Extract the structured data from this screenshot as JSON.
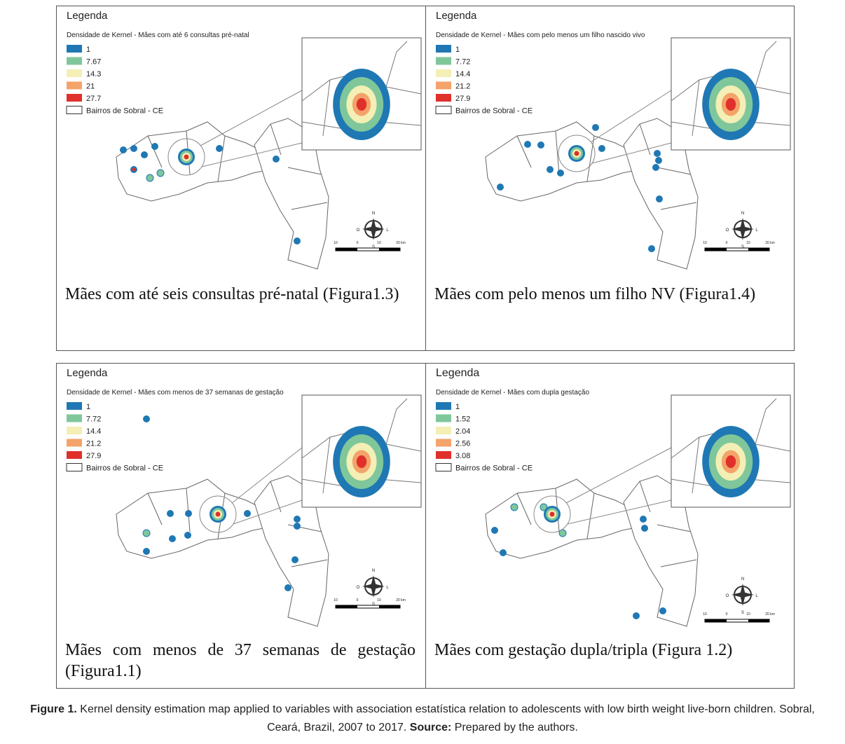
{
  "panels": [
    {
      "legend_heading": "Legenda",
      "legend_title": "Densidade de Kernel - Mães com até 6 consultas pré-natal",
      "legend_items": [
        "1",
        "7.67",
        "14.3",
        "21",
        "27.7"
      ],
      "boundary_label": "Bairros de Sobral - CE",
      "compass": [
        "N",
        "O",
        "L",
        "S"
      ],
      "scale_labels": [
        "10",
        "0",
        "10",
        "20 km"
      ],
      "caption": "Mães com até seis consultas pré-natal (Figura1.3)"
    },
    {
      "legend_heading": "Legenda",
      "legend_title": "Densidade de Kernel - Mães com pelo menos um filho nascido vivo",
      "legend_items": [
        "1",
        "7.72",
        "14.4",
        "21.2",
        "27.9"
      ],
      "boundary_label": "Bairros de Sobral - CE",
      "compass": [
        "N",
        "O",
        "L",
        "S"
      ],
      "scale_labels": [
        "10",
        "0",
        "10",
        "20 km"
      ],
      "caption": "Mães com pelo menos um filho NV (Figura1.4)"
    },
    {
      "legend_heading": "Legenda",
      "legend_title": "Densidade de Kernel - Mães com menos de 37 semanas de gestação",
      "legend_items": [
        "1",
        "7.72",
        "14.4",
        "21.2",
        "27.9"
      ],
      "boundary_label": "Bairros de Sobral - CE",
      "compass": [
        "N",
        "O",
        "L",
        "S"
      ],
      "scale_labels": [
        "10",
        "0",
        "10",
        "20 km"
      ],
      "caption": "Mães com menos de 37 semanas de gestação (Figura1.1)"
    },
    {
      "legend_heading": "Legenda",
      "legend_title": "Densidade de Kernel - Mães com dupla gestação",
      "legend_items": [
        "1",
        "1.52",
        "2.04",
        "2.56",
        "3.08"
      ],
      "boundary_label": "Bairros de Sobral - CE",
      "compass": [
        "N",
        "O",
        "L",
        "S"
      ],
      "scale_labels": [
        "10",
        "0",
        "10",
        "20 km"
      ],
      "caption": "Mães com gestação dupla/tripla (Figura 1.2)"
    }
  ],
  "figure_caption": {
    "label": "Figure 1.",
    "text": "Kernel density estimation map applied to variables with association estatística relation to adolescents with low birth weight live-born children. Sobral, Ceará, Brazil, 2007 to 2017.",
    "source_label": "Source:",
    "source_text": "Prepared by the authors."
  }
}
